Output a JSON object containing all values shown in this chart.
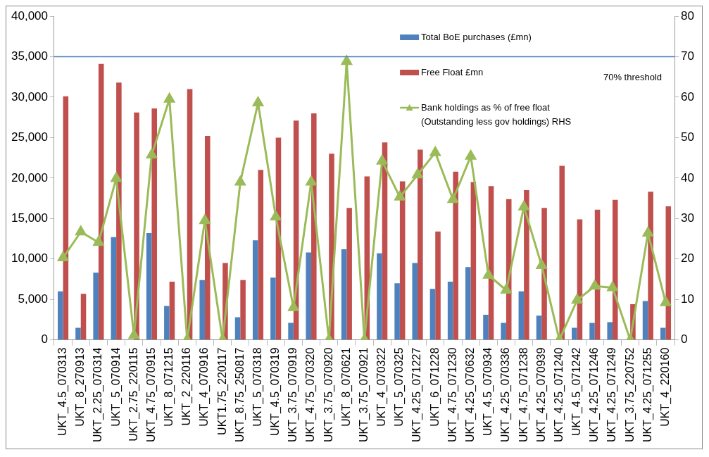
{
  "chart_data": {
    "type": "bar",
    "categories": [
      "UKT_4.5_070313",
      "UKT_8_270913",
      "UKT_2.25_070314",
      "UKT_5_070914",
      "UKT_2.75_220115",
      "UKT_4.75_070915",
      "UKT_8_071215",
      "UKT_2_220116",
      "UKT_4_070916",
      "UKT1.75_220117",
      "UKT_8.75_250817",
      "UKT_5_070318",
      "UKT_4.5_070319",
      "UKT_3.75_070919",
      "UKT_4.75_070320",
      "UKT_3.75_070920",
      "UKT_8_070621",
      "UKT_3.75_070921",
      "UKT_4_070322",
      "UKT_5_070325",
      "UKT_4.25_071227",
      "UKT_6_071228",
      "UKT_4.75_071230",
      "UKT_4.25_070632",
      "UKT_4.5_070934",
      "UKT_4.25_070336",
      "UKT_4.75_071238",
      "UKT_4.25_070939",
      "UKT_4.25_071240",
      "UKT_4.5_071242",
      "UKT_4.25_071246",
      "UKT_4.25_071249",
      "UKT_3.75_220752",
      "UKT_4.25_071255",
      "UKT_4_220160"
    ],
    "series": [
      {
        "name": "Total BoE purchases (£mn)",
        "color": "#4f81bd",
        "values": [
          6000,
          1500,
          8300,
          12700,
          null,
          13200,
          4200,
          0,
          7400,
          0,
          2800,
          12300,
          7700,
          2100,
          10800,
          0,
          11200,
          0,
          10700,
          7000,
          9500,
          6300,
          7200,
          9000,
          3100,
          2100,
          6000,
          3000,
          0,
          1500,
          2100,
          2200,
          0,
          4800,
          1500
        ]
      },
      {
        "name": "Free Float £mn",
        "color": "#c0504d",
        "values": [
          30100,
          5700,
          34100,
          31800,
          28100,
          28600,
          7200,
          31000,
          25200,
          9500,
          7400,
          21000,
          25000,
          27100,
          28000,
          23000,
          16300,
          20200,
          24400,
          19600,
          23500,
          13400,
          20800,
          19500,
          19000,
          17400,
          18500,
          16300,
          21500,
          14900,
          16100,
          17300,
          4400,
          18300,
          16500
        ]
      },
      {
        "name": "Bank holdings as % of free float (Outstanding less gov holdings) RHS",
        "color": "#9bbb59",
        "type": "line",
        "axis": "y2",
        "marker": "triangle",
        "values": [
          20.3,
          26.7,
          24.1,
          39.9,
          1.1,
          45.7,
          59.5,
          0,
          29.5,
          0,
          39,
          58.6,
          30.4,
          8,
          39,
          0,
          68.8,
          0,
          44.2,
          35.3,
          40.8,
          46.3,
          34.7,
          45.4,
          16,
          12.3,
          32.9,
          18.4,
          0,
          9.8,
          13.3,
          12.9,
          0,
          26.4,
          9.2
        ]
      }
    ],
    "ylim": [
      0,
      40000
    ],
    "yticks": [
      {
        "value": 0,
        "label": "0"
      },
      {
        "value": 5000,
        "label": "5,000"
      },
      {
        "value": 10000,
        "label": "10,000"
      },
      {
        "value": 15000,
        "label": "15,000"
      },
      {
        "value": 20000,
        "label": "20,000"
      },
      {
        "value": 25000,
        "label": "25,000"
      },
      {
        "value": 30000,
        "label": "30,000"
      },
      {
        "value": 35000,
        "label": "35,000"
      },
      {
        "value": 40000,
        "label": "40,000"
      }
    ],
    "y2lim": [
      0,
      80
    ],
    "y2ticks": [
      0,
      10,
      20,
      30,
      40,
      50,
      60,
      70,
      80
    ],
    "ref_lines": [
      {
        "axis": "y2",
        "value": 70,
        "label": "70% threshold",
        "color": "#4f81bd"
      }
    ],
    "legend": "top right"
  }
}
